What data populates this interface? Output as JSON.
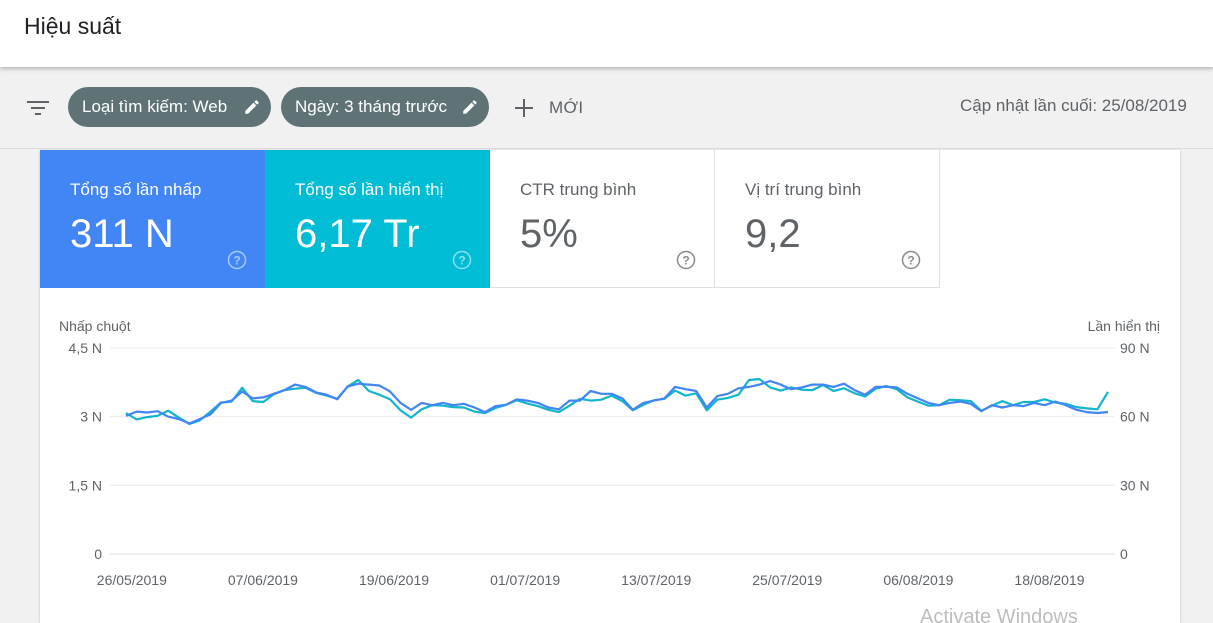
{
  "header": {
    "title": "Hiệu suất"
  },
  "filters": {
    "chips": [
      {
        "label": "Loại tìm kiếm: Web"
      },
      {
        "label": "Ngày: 3 tháng trước"
      }
    ],
    "new_label": "MỚI",
    "updated": "Cập nhật lần cuối: 25/08/2019"
  },
  "metrics": [
    {
      "label": "Tổng số lần nhấp",
      "value": "311 N",
      "color": "#4285f4"
    },
    {
      "label": "Tổng số lần hiển thị",
      "value": "6,17 Tr",
      "color": "#00bcd4"
    },
    {
      "label": "CTR trung bình",
      "value": "5%"
    },
    {
      "label": "Vị trí trung bình",
      "value": "9,2"
    }
  ],
  "chart_data": {
    "type": "line",
    "ylabel_left": "Nhấp chuột",
    "ylabel_right": "Lần hiển thị",
    "left_ticks": [
      "0",
      "1,5 N",
      "3 N",
      "4,5 N"
    ],
    "right_ticks": [
      "0",
      "30 N",
      "60 N",
      "90 N"
    ],
    "ylim_left": [
      0,
      4500
    ],
    "ylim_right": [
      0,
      90000
    ],
    "grid": true,
    "x_tick_labels": [
      "26/05/2019",
      "07/06/2019",
      "19/06/2019",
      "01/07/2019",
      "13/07/2019",
      "25/07/2019",
      "06/08/2019",
      "18/08/2019"
    ],
    "x_start": "2019-05-24",
    "x_end": "2019-08-24",
    "series": [
      {
        "name": "Tổng số lần nhấp",
        "axis": "left",
        "color": "#4285f4",
        "values": [
          3020,
          3110,
          3090,
          3120,
          3000,
          2950,
          2850,
          2950,
          3050,
          3300,
          3350,
          3550,
          3400,
          3420,
          3500,
          3580,
          3700,
          3650,
          3530,
          3480,
          3380,
          3660,
          3720,
          3700,
          3680,
          3550,
          3300,
          3150,
          3300,
          3250,
          3300,
          3250,
          3280,
          3200,
          3100,
          3230,
          3260,
          3380,
          3350,
          3300,
          3200,
          3160,
          3350,
          3350,
          3560,
          3500,
          3500,
          3400,
          3150,
          3300,
          3350,
          3400,
          3650,
          3600,
          3560,
          3200,
          3450,
          3500,
          3620,
          3650,
          3700,
          3780,
          3700,
          3600,
          3640,
          3700,
          3700,
          3650,
          3720,
          3580,
          3480,
          3650,
          3650,
          3640,
          3500,
          3400,
          3300,
          3250,
          3300,
          3330,
          3280,
          3120,
          3250,
          3200,
          3250,
          3230,
          3300,
          3250,
          3330,
          3250,
          3150,
          3100,
          3080,
          3100
        ]
      },
      {
        "name": "Tổng số lần hiển thị",
        "axis": "right",
        "color": "#12b5cb",
        "values": [
          61600,
          58800,
          59800,
          60400,
          62600,
          59600,
          56800,
          58400,
          62200,
          66200,
          66600,
          72600,
          66800,
          66400,
          69800,
          71600,
          72200,
          72600,
          70400,
          69200,
          67800,
          73200,
          76000,
          71200,
          69600,
          67600,
          62800,
          59600,
          63200,
          65000,
          64800,
          64200,
          64000,
          62200,
          61600,
          63800,
          65200,
          67200,
          65800,
          64600,
          63000,
          62000,
          64800,
          67800,
          67000,
          67400,
          69200,
          66800,
          62800,
          65200,
          67200,
          67800,
          71400,
          69200,
          70200,
          62800,
          67400,
          68200,
          69600,
          76000,
          76400,
          72800,
          71400,
          72800,
          71800,
          71600,
          73800,
          71200,
          72400,
          70200,
          68800,
          72200,
          73400,
          72000,
          68400,
          66600,
          64800,
          65000,
          67400,
          67200,
          66800,
          62600,
          64800,
          66800,
          65000,
          66400,
          66400,
          67600,
          66200,
          65600,
          64200,
          63600,
          63200,
          70800
        ]
      }
    ]
  }
}
